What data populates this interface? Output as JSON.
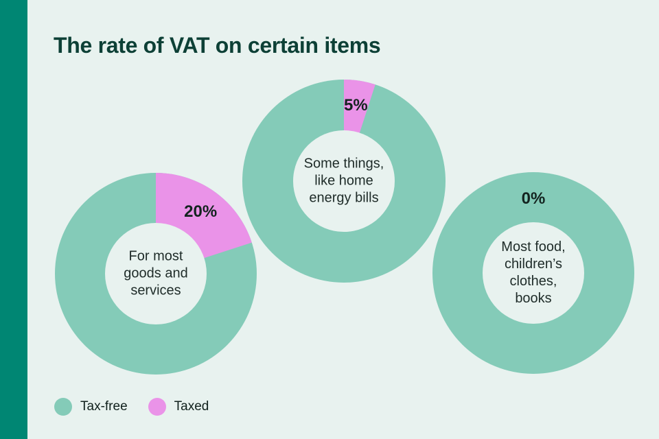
{
  "page": {
    "title": "The rate of VAT on certain items",
    "background_color": "#e8f2ef",
    "accent_bar_color": "#008673",
    "title_color": "#0d4036"
  },
  "legend": {
    "items": [
      {
        "label": "Tax-free",
        "color": "#84cbb8"
      },
      {
        "label": "Taxed",
        "color": "#ea93e8"
      }
    ]
  },
  "chart_data": {
    "type": "pie",
    "variant": "donut-small-multiples",
    "title": "The rate of VAT on certain items",
    "legend": [
      "Tax-free",
      "Taxed"
    ],
    "legend_position": "bottom-left",
    "colors": {
      "tax_free": "#84cbb8",
      "taxed": "#ea93e8",
      "hole": "#e8f2ef"
    },
    "donuts": [
      {
        "rate_label": "20%",
        "taxed_pct": 20,
        "tax_free_pct": 80,
        "center_lines": [
          "For most",
          "goods and",
          "services"
        ]
      },
      {
        "rate_label": "5%",
        "taxed_pct": 5,
        "tax_free_pct": 95,
        "center_lines": [
          "Some things,",
          "like home",
          "energy bills"
        ]
      },
      {
        "rate_label": "0%",
        "taxed_pct": 0,
        "tax_free_pct": 100,
        "center_lines": [
          "Most food,",
          "children’s",
          "clothes,",
          "books"
        ]
      }
    ]
  }
}
